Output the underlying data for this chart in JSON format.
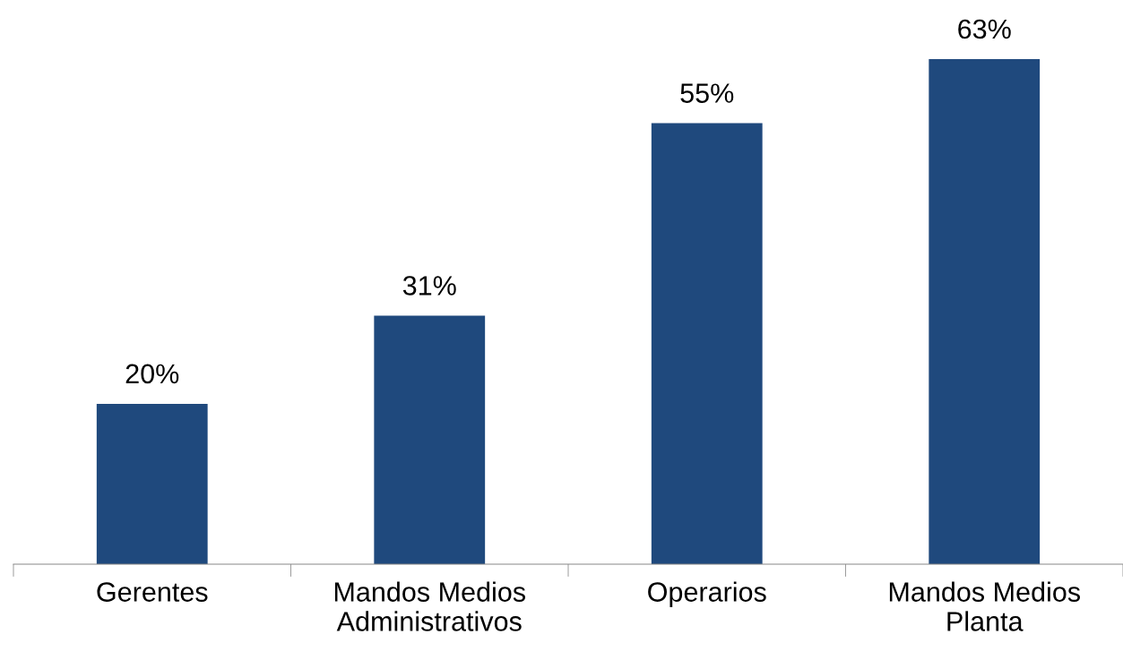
{
  "chart_data": {
    "type": "bar",
    "categories": [
      "Gerentes",
      "Mandos Medios\nAdministrativos",
      "Operarios",
      "Mandos Medios\nPlanta"
    ],
    "values": [
      20,
      31,
      55,
      63
    ],
    "value_labels": [
      "20%",
      "31%",
      "55%",
      "63%"
    ],
    "color": "#1f497d",
    "data_labels": true,
    "grid": false,
    "legend": false
  }
}
